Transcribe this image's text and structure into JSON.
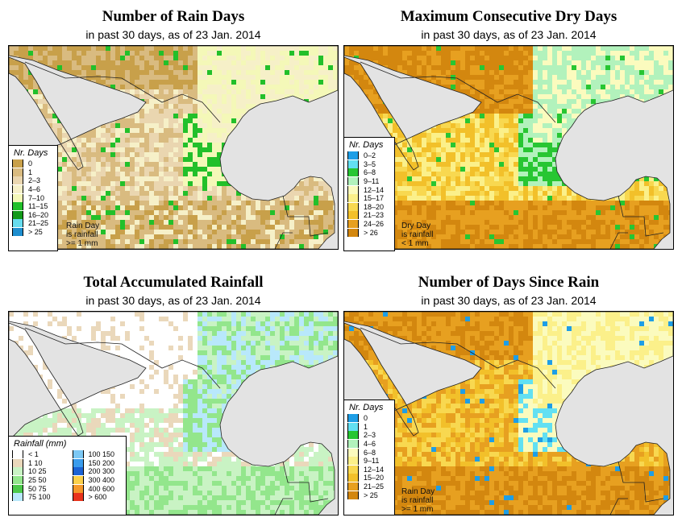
{
  "panels": [
    {
      "title": "Number of Rain Days",
      "subtitle": "in past 30 days, as of  23 Jan. 2014",
      "legend_title": "Nr. Days",
      "legend": [
        {
          "label": "0",
          "color": "#c8a04a"
        },
        {
          "label": "1",
          "color": "#d9bb80"
        },
        {
          "label": "2–3",
          "color": "#ead6b0"
        },
        {
          "label": "4–6",
          "color": "#f6f0c8"
        },
        {
          "label": "7–10",
          "color": "#f4f8b8"
        },
        {
          "label": "11–15",
          "color": "#22c02a"
        },
        {
          "label": "16–20",
          "color": "#119a1a"
        },
        {
          "label": "21–25",
          "color": "#66dcee"
        },
        {
          "label": "> 25",
          "color": "#1e8ecf"
        }
      ],
      "note": [
        "Rain Day",
        "is rainfall",
        ">= 1 mm"
      ]
    },
    {
      "title": "Maximum Consecutive Dry Days",
      "subtitle": "in past 30 days, as of  23 Jan. 2014",
      "legend_title": "Nr. Days",
      "legend": [
        {
          "label": "0–2",
          "color": "#1e9ee6"
        },
        {
          "label": "3–5",
          "color": "#62e0f2"
        },
        {
          "label": "6–8",
          "color": "#27c632"
        },
        {
          "label": "9–11",
          "color": "#b2f2bc"
        },
        {
          "label": "12–14",
          "color": "#fbfbbe"
        },
        {
          "label": "15–17",
          "color": "#fbf08a"
        },
        {
          "label": "18–20",
          "color": "#f8d850"
        },
        {
          "label": "21–23",
          "color": "#f2c02a"
        },
        {
          "label": "24–26",
          "color": "#e7a020"
        },
        {
          "label": "> 26",
          "color": "#d3870f"
        }
      ],
      "note": [
        "Dry Day",
        "is rainfall",
        "< 1 mm"
      ]
    },
    {
      "title": "Total Accumulated Rainfall",
      "subtitle": "in past 30 days, as of  23 Jan. 2014",
      "legend_title": "Rainfall (mm)",
      "legend": [
        {
          "label": "< 1",
          "color": "#ffffff"
        },
        {
          "label": "1   10",
          "color": "#ead8bb"
        },
        {
          "label": "10   25",
          "color": "#c9f3c4"
        },
        {
          "label": "25   50",
          "color": "#93e68c"
        },
        {
          "label": "50   75",
          "color": "#4cc94a"
        },
        {
          "label": "75  100",
          "color": "#b8e8fb"
        },
        {
          "label": "100  150",
          "color": "#7cc8f4"
        },
        {
          "label": "150  200",
          "color": "#3a9cec"
        },
        {
          "label": "200  300",
          "color": "#1b62d4"
        },
        {
          "label": "300  400",
          "color": "#fbd04a"
        },
        {
          "label": "400  600",
          "color": "#f5982a"
        },
        {
          "label": "> 600",
          "color": "#e8331c"
        }
      ],
      "note": []
    },
    {
      "title": "Number of Days Since Rain",
      "subtitle": "in past 30 days, as of  23 Jan. 2014",
      "legend_title": "Nr. Days",
      "legend": [
        {
          "label": "0",
          "color": "#1e9ee6"
        },
        {
          "label": "1",
          "color": "#62e0f2"
        },
        {
          "label": "2–3",
          "color": "#27c632"
        },
        {
          "label": "4–6",
          "color": "#b2f2bc"
        },
        {
          "label": "6–8",
          "color": "#fbfbbe"
        },
        {
          "label": "9–11",
          "color": "#fbf08a"
        },
        {
          "label": "12–14",
          "color": "#f8d850"
        },
        {
          "label": "15–20",
          "color": "#f2c02a"
        },
        {
          "label": "21–25",
          "color": "#e7a020"
        },
        {
          "label": "> 25",
          "color": "#d3870f"
        }
      ],
      "note": [
        "Rain Day",
        "is rainfall",
        ">= 1 mm"
      ]
    }
  ]
}
